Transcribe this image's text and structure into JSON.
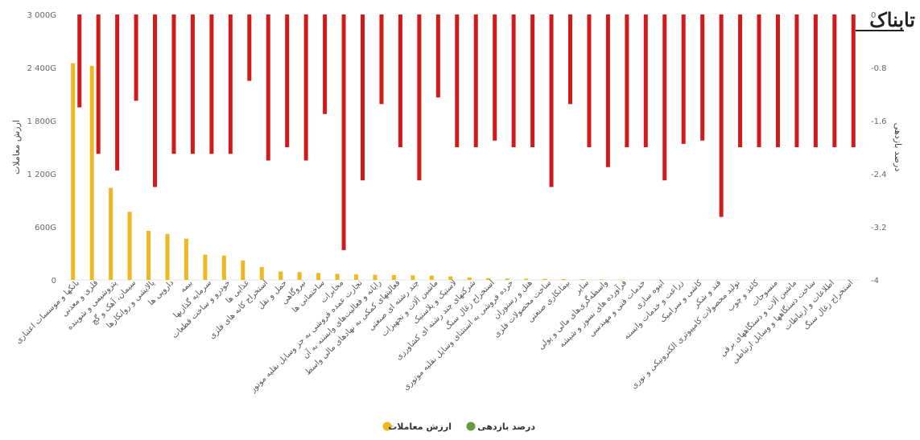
{
  "logo": {
    "text": "تابناک"
  },
  "legend": {
    "items": [
      {
        "label": "ارزش معاملات",
        "color": "#f0b81f"
      },
      {
        "label": "درصد بازدهی",
        "color": "#6b9a3a"
      }
    ]
  },
  "chart_data": {
    "type": "bar",
    "categories": [
      "بانکها و موسسات اعتباری",
      "فلزی و معدنی",
      "پتروشیمی و شوینده",
      "سیمان، آهک و گچ",
      "پالایشی و روانکارها",
      "دارویی ها",
      "بیمه",
      "سرمایه گذاریها",
      "خودرو و ساخت قطعات",
      "غذایی ها",
      "استخراج کانه های فلزی",
      "حمل و نقل",
      "نیروگاهی",
      "ساختمانی ها",
      "مخابرات",
      "تجارت عمده فروشی به جز وسایل نقلیه موتور",
      "رایانه و فعالیت‌های وابسته به آن",
      "فعالیتهای کمکی به نهادهای مالی واسط",
      "چند رشته ای صنعتی",
      "ماشین آلات و تجهیزات",
      "لاستیک و پلاستیک",
      "شرکتهای چند رشته ای کشاورزی",
      "استخراج زغال سنگ",
      "خرده فروشی به استثنای وسایل نقلیه موتوری",
      "هتل و رستوران",
      "ساخت محصولات فلزی",
      "بیمانکاری صنعتی",
      "سایر",
      "واسطه‌گری‌های مالی و پولی",
      "فرآورده های نسوز و شیشه",
      "خدمات فنی و مهندسی",
      "انبوه سازی",
      "زراعت و خدمات وابسته",
      "کاشی و سرامیک",
      "قند و شکر",
      "تولید محصولات کامپیوتری الکترونیکی و نوری",
      "کاغذ و چوب",
      "منسوجات",
      "ماشین آلات و دستگاههای برقی",
      "ساخت دستگاهها و وسایل ارتباطی",
      "اطلاعات و ارتباطات",
      "استخراج زغال سنگ"
    ],
    "series": [
      {
        "name": "ارزش معاملات",
        "axis": "left",
        "unit": "G",
        "color": "#f0b81f",
        "values": [
          2450,
          2420,
          1040,
          770,
          555,
          520,
          465,
          285,
          275,
          220,
          145,
          95,
          88,
          78,
          68,
          62,
          58,
          55,
          52,
          48,
          40,
          28,
          20,
          16,
          14,
          12,
          10,
          8,
          6,
          5,
          0,
          0,
          0,
          0,
          0,
          0,
          0,
          0,
          0,
          0,
          0,
          0
        ]
      },
      {
        "name": "درصد بازدهی",
        "axis": "right",
        "unit": "%",
        "color": "#d31a1a",
        "values": [
          -1.4,
          -2.1,
          -2.35,
          -1.3,
          -2.6,
          -2.1,
          -2.1,
          -2.1,
          -2.1,
          -1.0,
          -2.2,
          -2.0,
          -2.2,
          -1.5,
          -3.55,
          -2.5,
          -1.35,
          -2.0,
          -2.5,
          -1.25,
          -2.0,
          -2.0,
          -1.9,
          -2.0,
          -2.0,
          -2.6,
          -1.35,
          -2.0,
          -2.3,
          -2.0,
          -2.0,
          -2.5,
          -1.95,
          -1.9,
          -3.05,
          -2.0,
          -2.0,
          -2.0,
          -2.0,
          -2.0,
          -2.0,
          -2.0
        ]
      }
    ],
    "left_axis": {
      "label": "ارزش معاملات",
      "min": 0,
      "max": 3000,
      "ticks": [
        "0",
        "600G",
        "1 200G",
        "1 800G",
        "2 400G",
        "3 000G"
      ]
    },
    "right_axis": {
      "label": "درصد بازدهی",
      "min": -4,
      "max": 0,
      "ticks": [
        "0",
        "-0.8",
        "-1.6",
        "-2.4",
        "-3.2",
        "-4"
      ]
    },
    "legend_position": "bottom-center"
  }
}
